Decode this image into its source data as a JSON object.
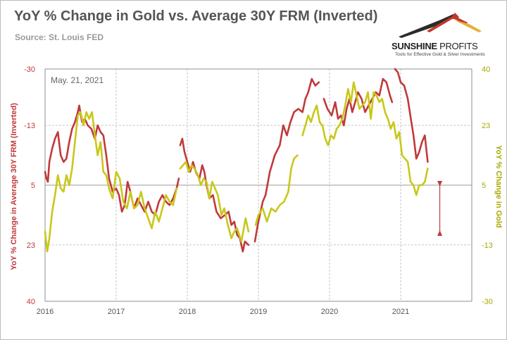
{
  "header": {
    "title": "YoY % Change in Gold vs. Average 30Y FRM (Inverted)",
    "source": "Source: St. Louis FED"
  },
  "logo": {
    "brand_bold": "SUNSHINE",
    "brand_light": " PROFITS",
    "tagline": "Tools for Effective Gold & Silver Investments"
  },
  "chart_data": {
    "type": "line",
    "annotation": "May. 21, 2021",
    "xlabel": "",
    "x_ticks": [
      "2016",
      "2017",
      "2018",
      "2019",
      "2020",
      "2021"
    ],
    "xlim": [
      2016.0,
      2022.0
    ],
    "y_left": {
      "label": "YoY % Change in Average 30Y FRM (Inverted)",
      "ticks": [
        "-30",
        "-13",
        "5",
        "23",
        "40"
      ],
      "lim": [
        -30,
        40
      ],
      "inverted": true,
      "color": "#c0393b"
    },
    "y_right": {
      "label": "YoY % Change in Gold",
      "ticks": [
        "40",
        "23",
        "5",
        "-13",
        "-30"
      ],
      "lim": [
        -30,
        40
      ],
      "color": "#c8c81a"
    },
    "series": [
      {
        "axis": "left",
        "color": "#c0393b",
        "segments": [
          [
            [
              2016.0,
              1
            ],
            [
              2016.02,
              3
            ],
            [
              2016.04,
              4
            ],
            [
              2016.06,
              -2
            ],
            [
              2016.1,
              -6
            ],
            [
              2016.14,
              -9
            ],
            [
              2016.18,
              -11
            ],
            [
              2016.22,
              -4
            ],
            [
              2016.26,
              -2
            ],
            [
              2016.3,
              -3
            ],
            [
              2016.34,
              -8
            ],
            [
              2016.38,
              -12
            ],
            [
              2016.42,
              -14
            ],
            [
              2016.46,
              -17
            ],
            [
              2016.48,
              -19
            ],
            [
              2016.52,
              -14
            ],
            [
              2016.56,
              -15
            ],
            [
              2016.6,
              -13
            ],
            [
              2016.65,
              -12
            ],
            [
              2016.7,
              -9
            ],
            [
              2016.74,
              -13
            ],
            [
              2016.78,
              -11
            ],
            [
              2016.82,
              -10
            ],
            [
              2016.86,
              -4
            ],
            [
              2016.9,
              3
            ],
            [
              2016.95,
              7
            ],
            [
              2017.0,
              6
            ],
            [
              2017.04,
              8
            ],
            [
              2017.08,
              13
            ],
            [
              2017.12,
              11
            ],
            [
              2017.16,
              4
            ],
            [
              2017.2,
              7
            ],
            [
              2017.25,
              12
            ],
            [
              2017.3,
              9
            ],
            [
              2017.35,
              11
            ],
            [
              2017.4,
              13
            ],
            [
              2017.45,
              10
            ],
            [
              2017.5,
              13
            ],
            [
              2017.55,
              14
            ],
            [
              2017.6,
              10
            ],
            [
              2017.65,
              8
            ],
            [
              2017.7,
              10
            ],
            [
              2017.75,
              11
            ],
            [
              2017.8,
              9
            ],
            [
              2017.85,
              6
            ],
            [
              2017.88,
              3
            ]
          ],
          [
            [
              2017.9,
              -7
            ],
            [
              2017.93,
              -9
            ],
            [
              2017.96,
              -5
            ],
            [
              2018.0,
              -2
            ],
            [
              2018.04,
              1
            ],
            [
              2018.08,
              -2
            ],
            [
              2018.12,
              1
            ],
            [
              2018.17,
              3
            ],
            [
              2018.21,
              -1
            ],
            [
              2018.24,
              1
            ],
            [
              2018.27,
              5
            ],
            [
              2018.31,
              9
            ],
            [
              2018.36,
              8
            ],
            [
              2018.41,
              13
            ],
            [
              2018.47,
              15
            ],
            [
              2018.53,
              14
            ],
            [
              2018.58,
              13
            ],
            [
              2018.62,
              17
            ],
            [
              2018.66,
              16
            ],
            [
              2018.7,
              20
            ],
            [
              2018.74,
              21
            ],
            [
              2018.78,
              25
            ],
            [
              2018.81,
              22
            ],
            [
              2018.86,
              23
            ]
          ],
          [
            [
              2018.95,
              22
            ],
            [
              2018.99,
              17
            ],
            [
              2019.02,
              14
            ],
            [
              2019.06,
              10
            ],
            [
              2019.1,
              8
            ],
            [
              2019.16,
              1
            ],
            [
              2019.23,
              -4
            ],
            [
              2019.3,
              -7
            ],
            [
              2019.35,
              -13
            ],
            [
              2019.4,
              -10
            ],
            [
              2019.45,
              -14
            ],
            [
              2019.5,
              -17
            ],
            [
              2019.56,
              -18
            ],
            [
              2019.62,
              -17
            ],
            [
              2019.66,
              -21
            ],
            [
              2019.7,
              -23
            ],
            [
              2019.75,
              -27
            ],
            [
              2019.8,
              -25
            ],
            [
              2019.85,
              -26
            ]
          ],
          [
            [
              2019.92,
              -21
            ],
            [
              2019.97,
              -18
            ],
            [
              2020.03,
              -16
            ],
            [
              2020.08,
              -20
            ],
            [
              2020.12,
              -15
            ],
            [
              2020.16,
              -16
            ],
            [
              2020.2,
              -13
            ],
            [
              2020.24,
              -18
            ],
            [
              2020.28,
              -21
            ],
            [
              2020.32,
              -17
            ],
            [
              2020.36,
              -20
            ],
            [
              2020.4,
              -23
            ],
            [
              2020.45,
              -21
            ],
            [
              2020.5,
              -17
            ],
            [
              2020.55,
              -19
            ],
            [
              2020.6,
              -21
            ],
            [
              2020.65,
              -23
            ],
            [
              2020.7,
              -22
            ],
            [
              2020.75,
              -27
            ],
            [
              2020.8,
              -26
            ],
            [
              2020.85,
              -22
            ],
            [
              2020.88,
              -20
            ]
          ],
          [
            [
              2020.92,
              -30
            ],
            [
              2020.96,
              -29
            ],
            [
              2021.0,
              -26
            ],
            [
              2021.05,
              -25
            ],
            [
              2021.1,
              -21
            ],
            [
              2021.15,
              -14
            ],
            [
              2021.18,
              -10
            ],
            [
              2021.22,
              -3
            ],
            [
              2021.26,
              -5
            ],
            [
              2021.3,
              -8
            ],
            [
              2021.34,
              -10
            ],
            [
              2021.38,
              -2
            ]
          ]
        ]
      },
      {
        "axis": "right",
        "color": "#c8c81a",
        "segments": [
          [
            [
              2016.0,
              -9
            ],
            [
              2016.03,
              -15
            ],
            [
              2016.06,
              -11
            ],
            [
              2016.1,
              -3
            ],
            [
              2016.14,
              2
            ],
            [
              2016.18,
              8
            ],
            [
              2016.22,
              4
            ],
            [
              2016.26,
              3
            ],
            [
              2016.3,
              8
            ],
            [
              2016.34,
              5
            ],
            [
              2016.38,
              10
            ],
            [
              2016.42,
              18
            ],
            [
              2016.46,
              26
            ],
            [
              2016.5,
              27
            ],
            [
              2016.54,
              23
            ],
            [
              2016.58,
              27
            ],
            [
              2016.62,
              25
            ],
            [
              2016.66,
              27
            ],
            [
              2016.7,
              20
            ],
            [
              2016.74,
              14
            ],
            [
              2016.78,
              18
            ],
            [
              2016.82,
              9
            ],
            [
              2016.86,
              8
            ],
            [
              2016.9,
              4
            ],
            [
              2016.95,
              1
            ],
            [
              2017.0,
              9
            ],
            [
              2017.05,
              7
            ],
            [
              2017.1,
              0
            ],
            [
              2017.15,
              -2
            ],
            [
              2017.2,
              3
            ],
            [
              2017.25,
              -2
            ],
            [
              2017.3,
              -1
            ],
            [
              2017.35,
              3
            ],
            [
              2017.4,
              -2
            ],
            [
              2017.45,
              -5
            ],
            [
              2017.5,
              -8
            ],
            [
              2017.55,
              -3
            ],
            [
              2017.6,
              -6
            ],
            [
              2017.65,
              -2
            ],
            [
              2017.7,
              2
            ],
            [
              2017.75,
              0
            ],
            [
              2017.8,
              -1
            ],
            [
              2017.85,
              4
            ]
          ],
          [
            [
              2017.9,
              10
            ],
            [
              2017.94,
              11
            ],
            [
              2017.98,
              12
            ],
            [
              2018.02,
              9
            ],
            [
              2018.06,
              11
            ],
            [
              2018.1,
              10
            ],
            [
              2018.15,
              8
            ],
            [
              2018.19,
              5
            ],
            [
              2018.23,
              7
            ],
            [
              2018.27,
              6
            ],
            [
              2018.31,
              1
            ],
            [
              2018.35,
              6
            ],
            [
              2018.39,
              4
            ],
            [
              2018.43,
              2
            ],
            [
              2018.48,
              -4
            ],
            [
              2018.52,
              -2
            ],
            [
              2018.57,
              -7
            ],
            [
              2018.62,
              -11
            ],
            [
              2018.66,
              -9
            ],
            [
              2018.7,
              -8
            ],
            [
              2018.76,
              -12
            ],
            [
              2018.82,
              -5
            ],
            [
              2018.86,
              -9
            ]
          ],
          [
            [
              2018.96,
              -7
            ],
            [
              2019.0,
              -4
            ],
            [
              2019.06,
              -2
            ],
            [
              2019.12,
              -6
            ],
            [
              2019.18,
              -2
            ],
            [
              2019.24,
              -3
            ],
            [
              2019.3,
              -1
            ],
            [
              2019.36,
              0
            ],
            [
              2019.42,
              3
            ],
            [
              2019.46,
              10
            ],
            [
              2019.5,
              13
            ],
            [
              2019.55,
              14
            ]
          ],
          [
            [
              2019.62,
              20
            ],
            [
              2019.66,
              23
            ],
            [
              2019.7,
              26
            ],
            [
              2019.74,
              24
            ],
            [
              2019.78,
              27
            ],
            [
              2019.82,
              29
            ],
            [
              2019.86,
              24
            ],
            [
              2019.9,
              23
            ],
            [
              2019.94,
              19
            ],
            [
              2019.98,
              17
            ],
            [
              2020.02,
              20
            ],
            [
              2020.06,
              19
            ],
            [
              2020.1,
              22
            ],
            [
              2020.14,
              23
            ],
            [
              2020.18,
              25
            ],
            [
              2020.22,
              29
            ],
            [
              2020.26,
              34
            ],
            [
              2020.3,
              30
            ],
            [
              2020.34,
              36
            ],
            [
              2020.38,
              32
            ],
            [
              2020.42,
              28
            ],
            [
              2020.46,
              29
            ],
            [
              2020.5,
              30
            ],
            [
              2020.54,
              33
            ],
            [
              2020.58,
              25
            ],
            [
              2020.62,
              33
            ],
            [
              2020.66,
              32
            ],
            [
              2020.7,
              30
            ],
            [
              2020.74,
              31
            ],
            [
              2020.78,
              27
            ],
            [
              2020.82,
              25
            ],
            [
              2020.86,
              22
            ],
            [
              2020.9,
              24
            ],
            [
              2020.94,
              19
            ],
            [
              2020.98,
              21
            ],
            [
              2021.02,
              14
            ],
            [
              2021.06,
              13
            ],
            [
              2021.1,
              12
            ],
            [
              2021.14,
              6
            ],
            [
              2021.18,
              5
            ],
            [
              2021.22,
              2
            ],
            [
              2021.26,
              5
            ],
            [
              2021.3,
              5
            ],
            [
              2021.34,
              6
            ],
            [
              2021.38,
              10
            ]
          ]
        ]
      }
    ],
    "arrow": {
      "x": 2021.55,
      "y_from": 19,
      "y_to": 5
    }
  }
}
